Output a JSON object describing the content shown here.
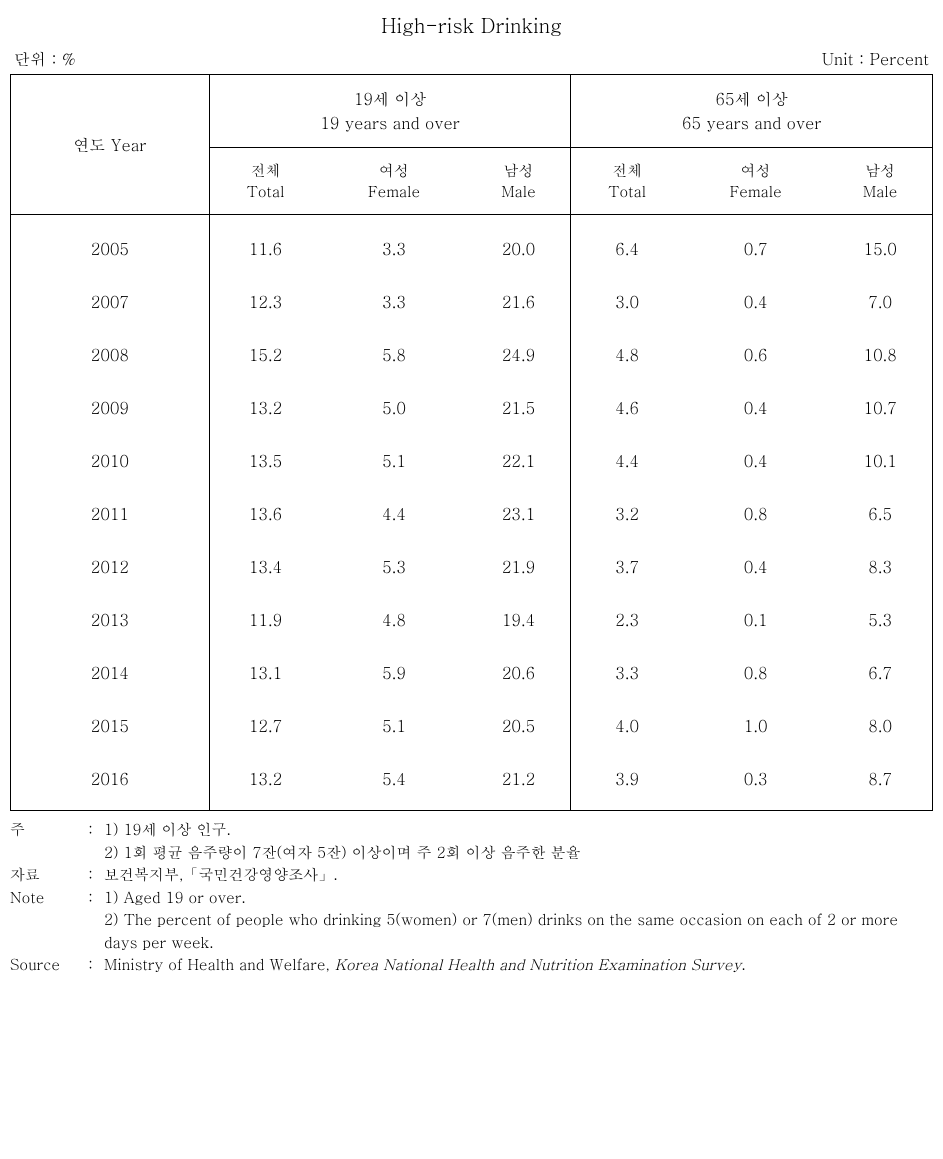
{
  "title": "High-risk Drinking",
  "unit_left": "단위 : %",
  "unit_right": "Unit : Percent",
  "table": {
    "year_header": "연도 Year",
    "group1_kr": "19세 이상",
    "group1_en": "19 years and over",
    "group2_kr": "65세 이상",
    "group2_en": "65 years and over",
    "sub_total_kr": "전체",
    "sub_total_en": "Total",
    "sub_female_kr": "여성",
    "sub_female_en": "Female",
    "sub_male_kr": "남성",
    "sub_male_en": "Male",
    "rows": [
      {
        "year": "2005",
        "v": [
          "11.6",
          "3.3",
          "20.0",
          "6.4",
          "0.7",
          "15.0"
        ]
      },
      {
        "year": "2007",
        "v": [
          "12.3",
          "3.3",
          "21.6",
          "3.0",
          "0.4",
          "7.0"
        ]
      },
      {
        "year": "2008",
        "v": [
          "15.2",
          "5.8",
          "24.9",
          "4.8",
          "0.6",
          "10.8"
        ]
      },
      {
        "year": "2009",
        "v": [
          "13.2",
          "5.0",
          "21.5",
          "4.6",
          "0.4",
          "10.7"
        ]
      },
      {
        "year": "2010",
        "v": [
          "13.5",
          "5.1",
          "22.1",
          "4.4",
          "0.4",
          "10.1"
        ]
      },
      {
        "year": "2011",
        "v": [
          "13.6",
          "4.4",
          "23.1",
          "3.2",
          "0.8",
          "6.5"
        ]
      },
      {
        "year": "2012",
        "v": [
          "13.4",
          "5.3",
          "21.9",
          "3.7",
          "0.4",
          "8.3"
        ]
      },
      {
        "year": "2013",
        "v": [
          "11.9",
          "4.8",
          "19.4",
          "2.3",
          "0.1",
          "5.3"
        ]
      },
      {
        "year": "2014",
        "v": [
          "13.1",
          "5.9",
          "20.6",
          "3.3",
          "0.8",
          "6.7"
        ]
      },
      {
        "year": "2015",
        "v": [
          "12.7",
          "5.1",
          "20.5",
          "4.0",
          "1.0",
          "8.0"
        ]
      },
      {
        "year": "2016",
        "v": [
          "13.2",
          "5.4",
          "21.2",
          "3.9",
          "0.3",
          "8.7"
        ]
      }
    ]
  },
  "notes": {
    "ju_label": "주",
    "ju_1": "1) 19세 이상 인구.",
    "ju_2": "2) 1회 평균 음주량이 7잔(여자 5잔) 이상이며 주 2회 이상 음주한 분율",
    "jaryo_label": "자료",
    "jaryo_text": "보건복지부,「국민건강영양조사」.",
    "note_label": "Note",
    "note_1": "1) Aged 19 or over.",
    "note_2": "2) The percent of people who drinking 5(women) or 7(men) drinks on the same occasion on each of 2 or more days per week.",
    "source_label": "Source",
    "source_prefix": "Ministry of Health and Welfare, ",
    "source_italic": "Korea National Health and Nutrition Examination Survey",
    "source_suffix": "."
  }
}
